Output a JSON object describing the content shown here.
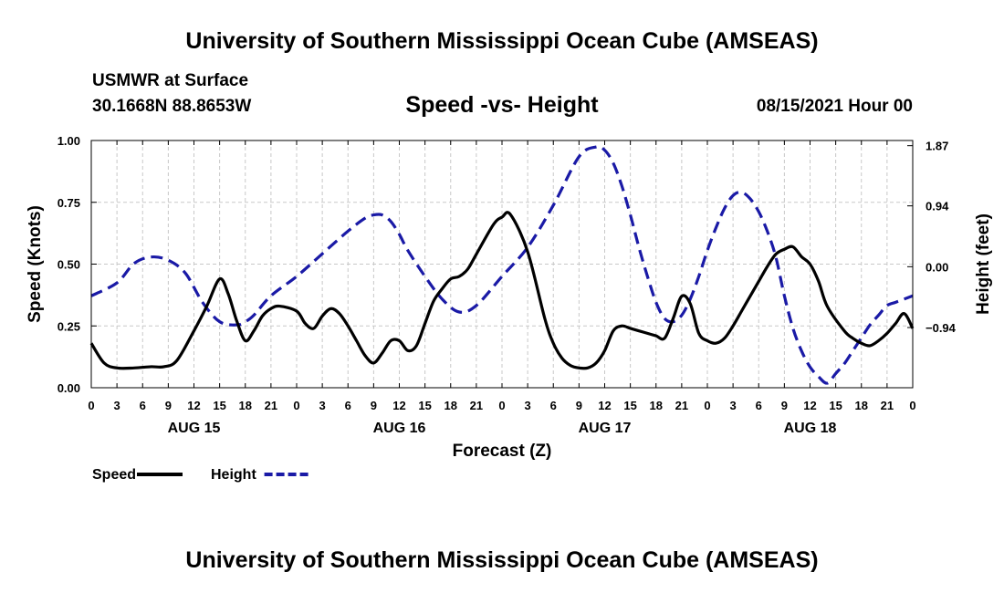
{
  "header": {
    "title": "University of Southern Mississippi Ocean Cube (AMSEAS)",
    "station": "USMWR at Surface",
    "coords": "30.1668N  88.8653W",
    "subtitle": "Speed -vs- Height",
    "datetime": "08/15/2021 Hour 00"
  },
  "footer": {
    "title": "University of Southern Mississippi Ocean Cube (AMSEAS)"
  },
  "chart_data": {
    "type": "line",
    "x_unit": "forecast hour",
    "xlim": [
      0,
      96
    ],
    "x_ticks": [
      0,
      3,
      6,
      9,
      12,
      15,
      18,
      21,
      24,
      27,
      30,
      33,
      36,
      39,
      42,
      45,
      48,
      51,
      54,
      57,
      60,
      63,
      66,
      69,
      72,
      75,
      78,
      81,
      84,
      87,
      90,
      93,
      96
    ],
    "x_tick_labels": [
      "0",
      "3",
      "6",
      "9",
      "12",
      "15",
      "18",
      "21",
      "0",
      "3",
      "6",
      "9",
      "12",
      "15",
      "18",
      "21",
      "0",
      "3",
      "6",
      "9",
      "12",
      "15",
      "18",
      "21",
      "0",
      "3",
      "6",
      "9",
      "12",
      "15",
      "18",
      "21",
      "0"
    ],
    "day_labels": [
      {
        "label": "AUG 15",
        "hour": 12
      },
      {
        "label": "AUG 16",
        "hour": 36
      },
      {
        "label": "AUG 17",
        "hour": 60
      },
      {
        "label": "AUG 18",
        "hour": 84
      }
    ],
    "xlabel": "Forecast (Z)",
    "ylabel_left": "Speed (Knots)",
    "ylim_left": [
      0,
      1
    ],
    "y_ticks_left": [
      0,
      0.25,
      0.5,
      0.75,
      1.0
    ],
    "y_tick_labels_left": [
      "0.00",
      "0.25",
      "0.50",
      "0.75",
      "1.00"
    ],
    "ylabel_right": "Height (feet)",
    "ylim_right": [
      -1.87,
      1.95
    ],
    "y_ticks_right": [
      -0.94,
      0.0,
      0.94,
      1.87
    ],
    "y_tick_labels_right": [
      "−0.94",
      "0.00",
      "0.94",
      "1.87"
    ],
    "grid": true,
    "series": [
      {
        "name": "Speed",
        "axis": "left",
        "color": "#000000",
        "style": "solid",
        "x": [
          0,
          1.5,
          3,
          5,
          7,
          8.5,
          10,
          12,
          13.5,
          15,
          16,
          17,
          18,
          19,
          20,
          21,
          22,
          24,
          25,
          26,
          27,
          28,
          29,
          30,
          31,
          32,
          33,
          34,
          35,
          36,
          37,
          38,
          39,
          40,
          41,
          42,
          43,
          44,
          45,
          47,
          48,
          49,
          51,
          53,
          54,
          55,
          56,
          57,
          58,
          59,
          60,
          61,
          62,
          63,
          64,
          65,
          66,
          67,
          68,
          69,
          70,
          71,
          72,
          73,
          74,
          75,
          76,
          77,
          78,
          79,
          80,
          81,
          82,
          83,
          84,
          85,
          86,
          88,
          89,
          90,
          91,
          92,
          93,
          94,
          95,
          96
        ],
        "values": [
          0.18,
          0.1,
          0.08,
          0.08,
          0.085,
          0.085,
          0.11,
          0.23,
          0.33,
          0.44,
          0.38,
          0.27,
          0.19,
          0.23,
          0.29,
          0.32,
          0.33,
          0.31,
          0.26,
          0.24,
          0.29,
          0.32,
          0.3,
          0.25,
          0.19,
          0.13,
          0.1,
          0.14,
          0.19,
          0.19,
          0.15,
          0.17,
          0.26,
          0.35,
          0.4,
          0.44,
          0.45,
          0.48,
          0.54,
          0.66,
          0.69,
          0.7,
          0.55,
          0.28,
          0.18,
          0.12,
          0.09,
          0.08,
          0.08,
          0.1,
          0.15,
          0.23,
          0.25,
          0.24,
          0.23,
          0.22,
          0.21,
          0.2,
          0.28,
          0.37,
          0.34,
          0.22,
          0.19,
          0.18,
          0.2,
          0.25,
          0.31,
          0.37,
          0.43,
          0.49,
          0.54,
          0.56,
          0.57,
          0.53,
          0.5,
          0.43,
          0.33,
          0.23,
          0.2,
          0.18,
          0.17,
          0.19,
          0.22,
          0.26,
          0.3,
          0.24
        ]
      },
      {
        "name": "Height",
        "axis": "right",
        "color": "#1a1aa6",
        "style": "dashed",
        "x": [
          0,
          3,
          5,
          7,
          9,
          11,
          13,
          15,
          17,
          18,
          19,
          21,
          24,
          27,
          30,
          32,
          33,
          34,
          35,
          36,
          37,
          39,
          41,
          43,
          45,
          48,
          51,
          54,
          57,
          59,
          60,
          61,
          62,
          63,
          64,
          65,
          66,
          67,
          68,
          69,
          70,
          71,
          72,
          73,
          74,
          75,
          76,
          77,
          78,
          79,
          80,
          81,
          82,
          83,
          84,
          85,
          86,
          87,
          88,
          89,
          90,
          91,
          92,
          93,
          94,
          95,
          96
        ],
        "values": [
          -0.45,
          -0.25,
          0.05,
          0.15,
          0.1,
          -0.1,
          -0.55,
          -0.85,
          -0.9,
          -0.85,
          -0.75,
          -0.45,
          -0.15,
          0.2,
          0.55,
          0.75,
          0.8,
          0.8,
          0.7,
          0.5,
          0.25,
          -0.15,
          -0.5,
          -0.7,
          -0.6,
          -0.15,
          0.3,
          0.95,
          1.7,
          1.85,
          1.8,
          1.6,
          1.25,
          0.8,
          0.3,
          -0.15,
          -0.55,
          -0.8,
          -0.85,
          -0.75,
          -0.5,
          -0.15,
          0.25,
          0.6,
          0.9,
          1.1,
          1.15,
          1.05,
          0.85,
          0.55,
          0.15,
          -0.45,
          -0.95,
          -1.3,
          -1.55,
          -1.7,
          -1.8,
          -1.65,
          -1.5,
          -1.3,
          -1.1,
          -0.9,
          -0.75,
          -0.6,
          -0.55,
          -0.5,
          -0.45
        ]
      }
    ],
    "legend": {
      "placement": "bottom-left",
      "entries": [
        {
          "label": "Speed",
          "color": "#000000",
          "style": "solid"
        },
        {
          "label": "Height",
          "color": "#1a1aa6",
          "style": "dashed"
        }
      ]
    }
  }
}
